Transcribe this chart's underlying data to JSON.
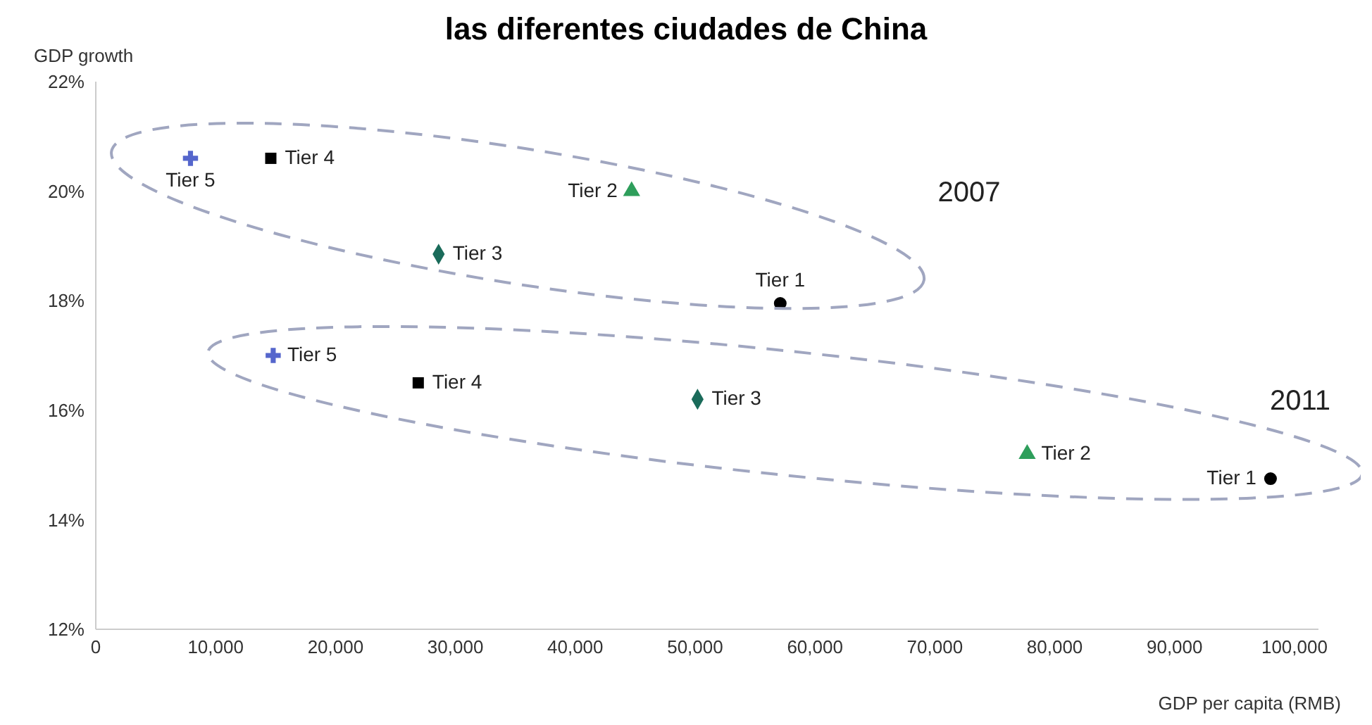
{
  "chart_data": {
    "type": "scatter",
    "title": "las diferentes ciudades de China",
    "xlabel": "GDP per capita (RMB)",
    "ylabel": "GDP growth",
    "xlim": [
      0,
      102000
    ],
    "xticks": [
      0,
      {
        "value": 10000,
        "label": "10,000"
      },
      {
        "value": 20000,
        "label": "20,000"
      },
      {
        "value": 30000,
        "label": "30,000"
      },
      {
        "value": 40000,
        "label": "40,000"
      },
      {
        "value": 50000,
        "label": "50,000"
      },
      {
        "value": 60000,
        "label": "60,000"
      },
      {
        "value": 70000,
        "label": "70,000"
      },
      {
        "value": 80000,
        "label": "80,000"
      },
      {
        "value": 90000,
        "label": "90,000"
      },
      {
        "value": 100000,
        "label": "100,000"
      }
    ],
    "ylim": [
      12,
      22
    ],
    "yticks": [
      {
        "value": 12,
        "label": "12%"
      },
      {
        "value": 14,
        "label": "14%"
      },
      {
        "value": 16,
        "label": "16%"
      },
      {
        "value": 18,
        "label": "18%"
      },
      {
        "value": 20,
        "label": "20%"
      },
      {
        "value": 22,
        "label": "22%"
      }
    ],
    "series": [
      {
        "name": "Tier 1",
        "color": "#000000",
        "marker": "circle",
        "x": [
          57100,
          98000
        ],
        "values": [
          17.95,
          14.75
        ]
      },
      {
        "name": "Tier 2",
        "color": "#2e9e5b",
        "marker": "triangle",
        "x": [
          44700,
          77700
        ],
        "values": [
          20.0,
          15.2
        ]
      },
      {
        "name": "Tier 3",
        "color": "#1a6b5a",
        "marker": "diamond",
        "x": [
          28600,
          50200
        ],
        "values": [
          18.85,
          16.2
        ]
      },
      {
        "name": "Tier 4",
        "color": "#000000",
        "marker": "square",
        "x": [
          14600,
          26900
        ],
        "values": [
          20.6,
          16.5
        ]
      },
      {
        "name": "Tier 5",
        "color": "#5566cc",
        "marker": "cross",
        "x": [
          7900,
          14800
        ],
        "values": [
          20.6,
          17.0
        ]
      }
    ],
    "annotations": [
      "2007",
      "2011"
    ]
  }
}
